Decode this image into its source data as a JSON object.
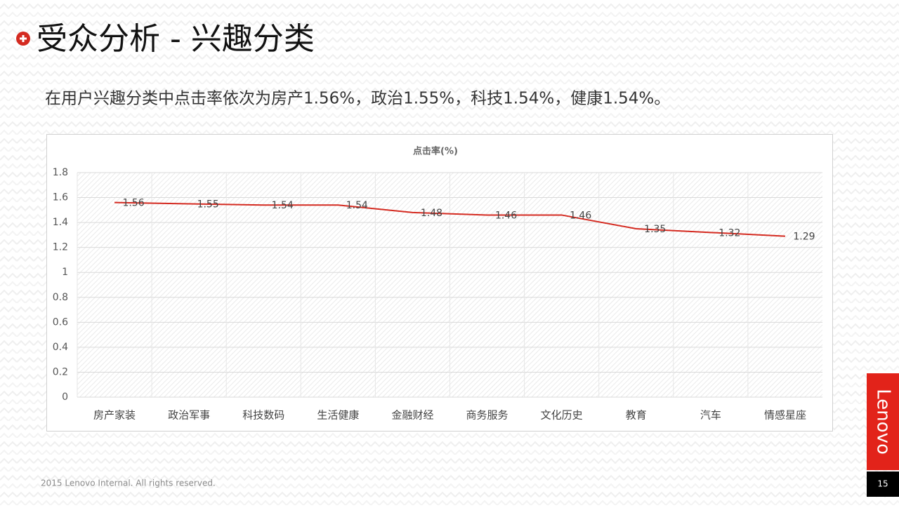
{
  "header": {
    "title": "受众分析 - 兴趣分类"
  },
  "subtitle": "在用户兴趣分类中点击率依次为房产1.56%，政治1.55%，科技1.54%，健康1.54%。",
  "footer": "2015 Lenovo  Internal.  All rights reserved.",
  "logo": "Lenovo",
  "page_number": "15",
  "chart_data": {
    "type": "line",
    "title": "点击率(%)",
    "categories": [
      "房产家装",
      "政治军事",
      "科技数码",
      "生活健康",
      "金融财经",
      "商务服务",
      "文化历史",
      "教育",
      "汽车",
      "情感星座"
    ],
    "values": [
      1.56,
      1.55,
      1.54,
      1.54,
      1.48,
      1.46,
      1.46,
      1.35,
      1.32,
      1.29
    ],
    "color": "#d42a20",
    "ylim": [
      0,
      1.8
    ],
    "yticks": [
      0,
      0.2,
      0.4,
      0.6,
      0.8,
      1,
      1.2,
      1.4,
      1.6,
      1.8
    ],
    "grid": true
  }
}
